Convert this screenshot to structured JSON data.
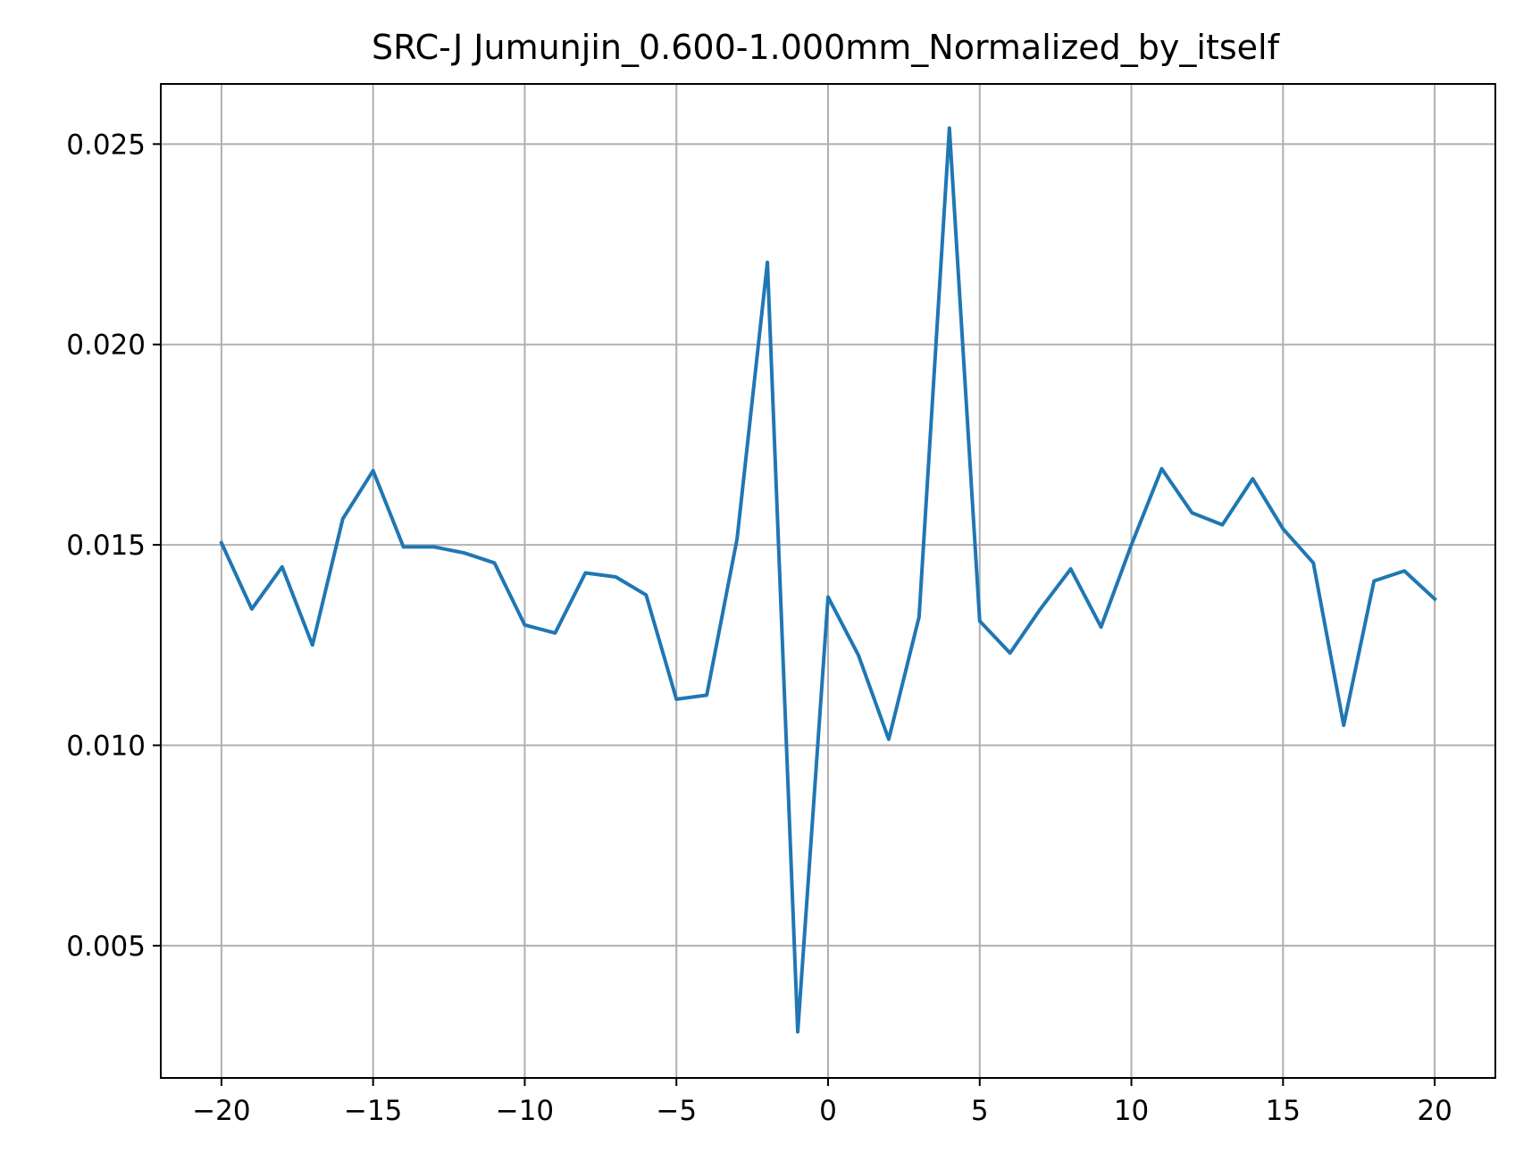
{
  "chart_data": {
    "type": "line",
    "title": "SRC-J Jumunjin_0.600-1.000mm_Normalized_by_itself",
    "xlabel": "",
    "ylabel": "",
    "xlim": [
      -22,
      22
    ],
    "ylim": [
      0.0017,
      0.0265
    ],
    "grid": true,
    "x_ticks": [
      -20,
      -15,
      -10,
      -5,
      0,
      5,
      10,
      15,
      20
    ],
    "x_tick_labels": [
      "−20",
      "−15",
      "−10",
      "−5",
      "0",
      "5",
      "10",
      "15",
      "20"
    ],
    "y_ticks": [
      0.005,
      0.01,
      0.015,
      0.02,
      0.025
    ],
    "y_tick_labels": [
      "0.005",
      "0.010",
      "0.015",
      "0.020",
      "0.025"
    ],
    "series": [
      {
        "color": "#1f77b4",
        "x": [
          -20,
          -19,
          -18,
          -17,
          -16,
          -15,
          -14,
          -13,
          -12,
          -11,
          -10,
          -9,
          -8,
          -7,
          -6,
          -5,
          -4,
          -3,
          -2,
          -1,
          0,
          1,
          2,
          3,
          4,
          5,
          6,
          7,
          8,
          9,
          10,
          11,
          12,
          13,
          14,
          15,
          16,
          17,
          18,
          19,
          20
        ],
        "values": [
          0.01505,
          0.0134,
          0.01445,
          0.0125,
          0.01565,
          0.01685,
          0.01495,
          0.01495,
          0.0148,
          0.01455,
          0.013,
          0.0128,
          0.0143,
          0.0142,
          0.01375,
          0.01115,
          0.01125,
          0.01515,
          0.02205,
          0.00285,
          0.0137,
          0.01225,
          0.01015,
          0.0132,
          0.0254,
          0.0131,
          0.0123,
          0.0134,
          0.0144,
          0.01295,
          0.015,
          0.0169,
          0.0158,
          0.0155,
          0.01665,
          0.0154,
          0.01455,
          0.0105,
          0.0141,
          0.01435,
          0.01365
        ]
      }
    ]
  }
}
